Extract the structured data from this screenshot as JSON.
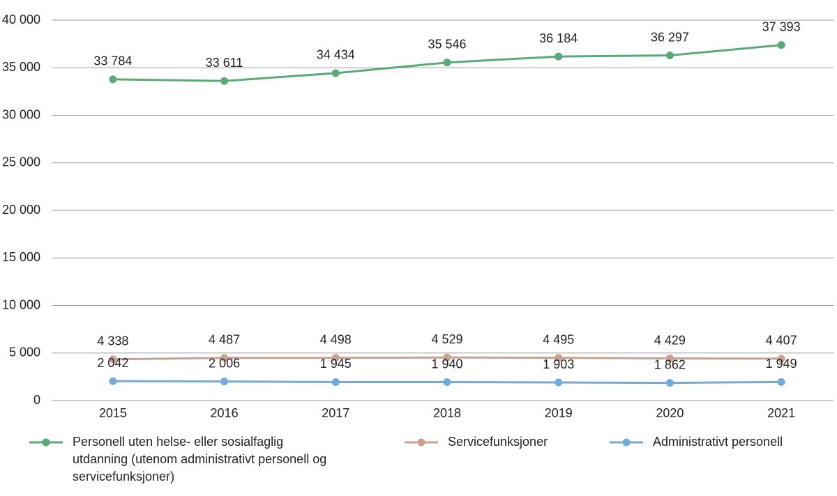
{
  "chart_data": {
    "type": "line",
    "categories": [
      "2015",
      "2016",
      "2017",
      "2018",
      "2019",
      "2020",
      "2021"
    ],
    "series": [
      {
        "name": "Personell uten helse- eller sosialfaglig utdanning (utenom administrativt personell og servicefunksjoner)",
        "color": "#5aaa78",
        "values": [
          33784,
          33611,
          34434,
          35546,
          36184,
          36297,
          37393
        ],
        "value_labels": [
          "33 784",
          "33 611",
          "34 434",
          "35 546",
          "36 184",
          "36 297",
          "37 393"
        ]
      },
      {
        "name": "Servicefunksjoner",
        "color": "#c9a193",
        "values": [
          4338,
          4487,
          4498,
          4529,
          4495,
          4429,
          4407
        ],
        "value_labels": [
          "4 338",
          "4 487",
          "4 498",
          "4 529",
          "4 495",
          "4 429",
          "4 407"
        ]
      },
      {
        "name": "Administrativt personell",
        "color": "#74a9dc",
        "values": [
          2042,
          2006,
          1945,
          1940,
          1903,
          1862,
          1949
        ],
        "value_labels": [
          "2 042",
          "2 006",
          "1 945",
          "1 940",
          "1 903",
          "1 862",
          "1 949"
        ]
      }
    ],
    "ylim": [
      0,
      40000
    ],
    "yticks": [
      0,
      {
        "value": 5000,
        "label": "5 000"
      },
      {
        "value": 10000,
        "label": "10 000"
      },
      {
        "value": 15000,
        "label": "15 000"
      },
      {
        "value": 20000,
        "label": "20 000"
      },
      {
        "value": 25000,
        "label": "25 000"
      },
      {
        "value": 30000,
        "label": "30 000"
      },
      {
        "value": 35000,
        "label": "35 000"
      },
      {
        "value": 40000,
        "label": "40 000"
      }
    ],
    "grid": true,
    "legend": "bottom"
  }
}
